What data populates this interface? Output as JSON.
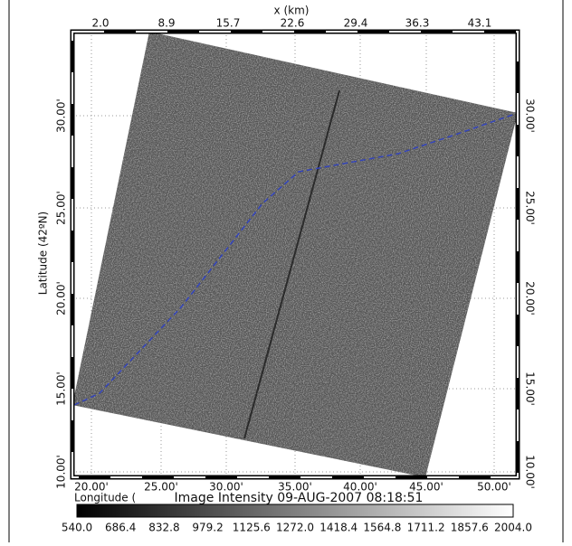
{
  "x_axis_title": "x (km)",
  "top_ticks": [
    "2.0",
    "8.9",
    "15.7",
    "22.6",
    "29.4",
    "36.3",
    "43.1"
  ],
  "y_axis_title": "Latitude (42ºN)",
  "left_ticks": [
    "30.00'",
    "25.00'",
    "20.00'",
    "15.00'",
    "10.00'"
  ],
  "right_ticks": [
    "30.00'",
    "25.00'",
    "20.00'",
    "15.00'",
    "10.00'"
  ],
  "bottom_ticks": [
    "20.00'",
    "25.00'",
    "30.00'",
    "35.00'",
    "40.00'",
    "45.00'",
    "50.00'"
  ],
  "bottom_title": "Longitude (",
  "colorbar_title": "Image Intensity 09-AUG-2007 08:18:51",
  "colorbar_ticks": [
    "540.0",
    "686.4",
    "832.8",
    "979.2",
    "1125.6",
    "1272.0",
    "1418.4",
    "1564.8",
    "1711.2",
    "1857.6",
    "2004.0"
  ]
}
